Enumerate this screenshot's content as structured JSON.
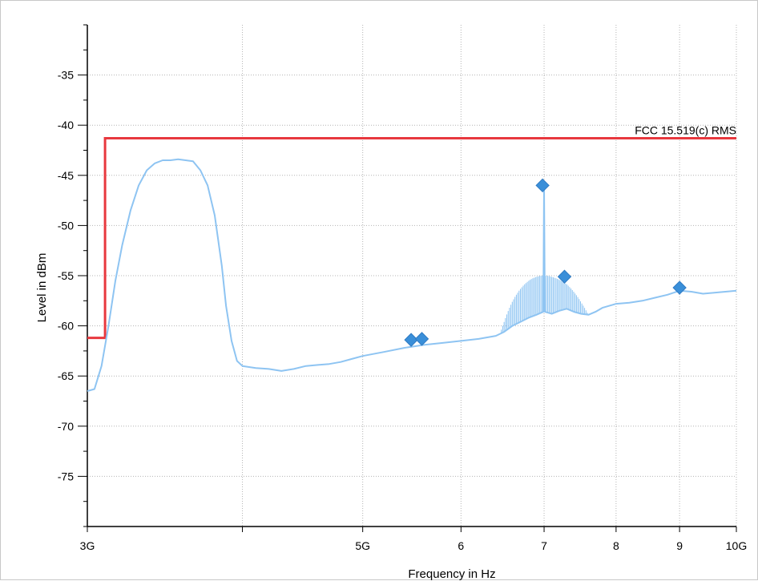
{
  "chart_data": {
    "type": "line",
    "xlabel": "Frequency in Hz",
    "ylabel": "Level in dBm",
    "x_scale": "log",
    "xlim": [
      3000000000,
      10000000000
    ],
    "ylim": [
      -80,
      -30
    ],
    "x_ticks": [
      {
        "value": 3000000000,
        "label": "3G"
      },
      {
        "value": 4000000000,
        "label": ""
      },
      {
        "value": 5000000000,
        "label": "5G"
      },
      {
        "value": 6000000000,
        "label": "6"
      },
      {
        "value": 7000000000,
        "label": "7"
      },
      {
        "value": 8000000000,
        "label": "8"
      },
      {
        "value": 9000000000,
        "label": "9"
      },
      {
        "value": 10000000000,
        "label": "10G"
      }
    ],
    "y_ticks": [
      -35,
      -40,
      -45,
      -50,
      -55,
      -60,
      -65,
      -70,
      -75
    ],
    "grid": true,
    "colors": {
      "trace": "#8ec4f2",
      "limit": "#e8383e",
      "marker": "#3a8fd9",
      "grid": "#b4b4b4",
      "axis": "#000000"
    },
    "limit_line": {
      "name": "FCC 15.519(c) RMS",
      "points": [
        [
          3000000000,
          -61.2
        ],
        [
          3100000000,
          -61.2
        ],
        [
          3100000000,
          -41.3
        ],
        [
          10000000000,
          -41.3
        ]
      ]
    },
    "series": [
      {
        "x": [
          3000000000,
          3040000000,
          3080000000,
          3120000000,
          3160000000,
          3200000000,
          3250000000,
          3300000000,
          3350000000,
          3400000000,
          3450000000,
          3500000000,
          3550000000,
          3600000000,
          3650000000,
          3700000000,
          3750000000,
          3800000000,
          3850000000,
          3880000000,
          3920000000,
          3960000000,
          4000000000,
          4100000000,
          4200000000,
          4300000000,
          4400000000,
          4500000000,
          4600000000,
          4700000000,
          4800000000,
          4900000000,
          5000000000,
          5200000000,
          5400000000,
          5600000000,
          5800000000,
          6000000000,
          6200000000,
          6400000000,
          6500000000,
          6600000000,
          6700000000,
          6800000000,
          6900000000,
          6960000000,
          6990000000,
          7000000000,
          7010000000,
          7100000000,
          7200000000,
          7300000000,
          7400000000,
          7500000000,
          7600000000,
          7700000000,
          7800000000,
          7900000000,
          8000000000,
          8200000000,
          8400000000,
          8600000000,
          8800000000,
          9000000000,
          9200000000,
          9400000000,
          9600000000,
          9800000000,
          10000000000
        ],
        "y": [
          -66.5,
          -66.3,
          -64.0,
          -60.0,
          -55.5,
          -52.0,
          -48.5,
          -46.0,
          -44.5,
          -43.8,
          -43.5,
          -43.5,
          -43.4,
          -43.5,
          -43.6,
          -44.5,
          -46.0,
          -49.0,
          -54.0,
          -58.0,
          -61.5,
          -63.5,
          -64.0,
          -64.2,
          -64.3,
          -64.5,
          -64.3,
          -64.0,
          -63.9,
          -63.8,
          -63.6,
          -63.3,
          -63.0,
          -62.6,
          -62.2,
          -61.9,
          -61.7,
          -61.5,
          -61.3,
          -61.0,
          -60.6,
          -60.0,
          -59.6,
          -59.2,
          -58.9,
          -58.7,
          -58.6,
          -46.0,
          -58.6,
          -58.8,
          -58.5,
          -58.3,
          -58.6,
          -58.8,
          -58.9,
          -58.6,
          -58.2,
          -58.0,
          -57.8,
          -57.7,
          -57.5,
          -57.2,
          -56.9,
          -56.5,
          -56.6,
          -56.8,
          -56.7,
          -56.6,
          -56.5
        ]
      }
    ],
    "spurs": {
      "x_range": [
        6450000000,
        7600000000
      ],
      "peak_level": -55.0
    },
    "markers": [
      {
        "x": 5470000000,
        "y": -61.4
      },
      {
        "x": 5580000000,
        "y": -61.3
      },
      {
        "x": 6980000000,
        "y": -46.0
      },
      {
        "x": 7270000000,
        "y": -55.1
      },
      {
        "x": 9000000000,
        "y": -56.2
      }
    ]
  }
}
